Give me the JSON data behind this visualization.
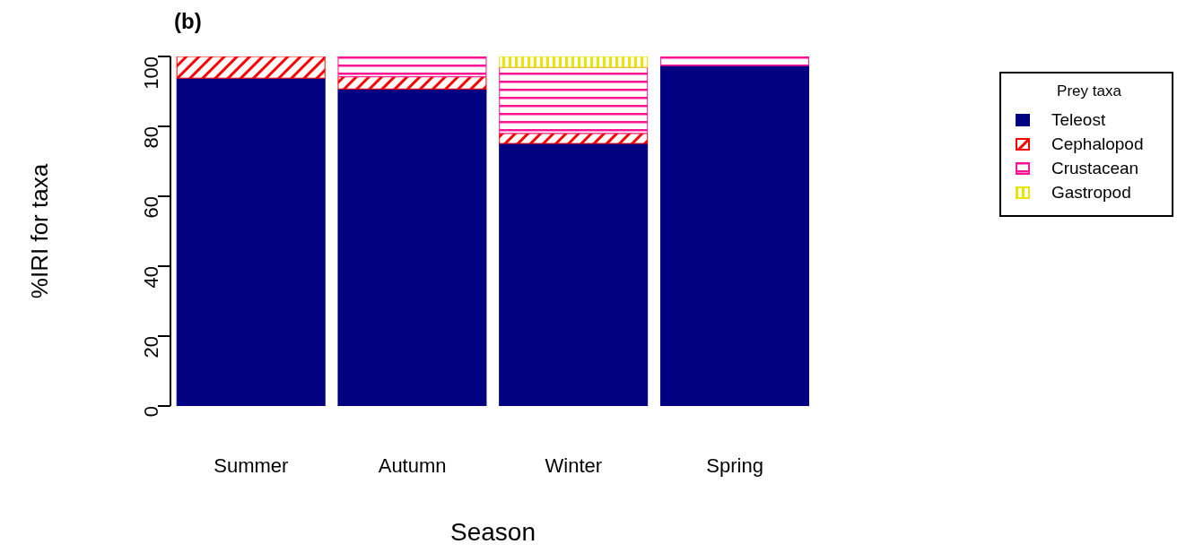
{
  "chart_data": {
    "type": "bar",
    "title": "(b)",
    "xlabel": "Season",
    "ylabel": "%IRI for taxa",
    "legend_title": "Prey taxa",
    "categories": [
      "Summer",
      "Autumn",
      "Winter",
      "Spring"
    ],
    "stacked": true,
    "ylim": [
      0,
      100
    ],
    "yticks": [
      0,
      20,
      40,
      60,
      80,
      100
    ],
    "grid": false,
    "legend": "right",
    "series": [
      {
        "name": "Teleost",
        "color": "#000080",
        "values": [
          93.8,
          90.7,
          75.1,
          97.4
        ]
      },
      {
        "name": "Cephalopod",
        "color": "#ff0000",
        "values": [
          6.2,
          3.5,
          2.9,
          null
        ]
      },
      {
        "name": "Crustacean",
        "color": "#ff1493",
        "values": [
          null,
          5.8,
          18.9,
          2.6
        ]
      },
      {
        "name": "Gastropod",
        "color": "#e6e600",
        "values": [
          null,
          null,
          3.1,
          null
        ]
      }
    ]
  }
}
